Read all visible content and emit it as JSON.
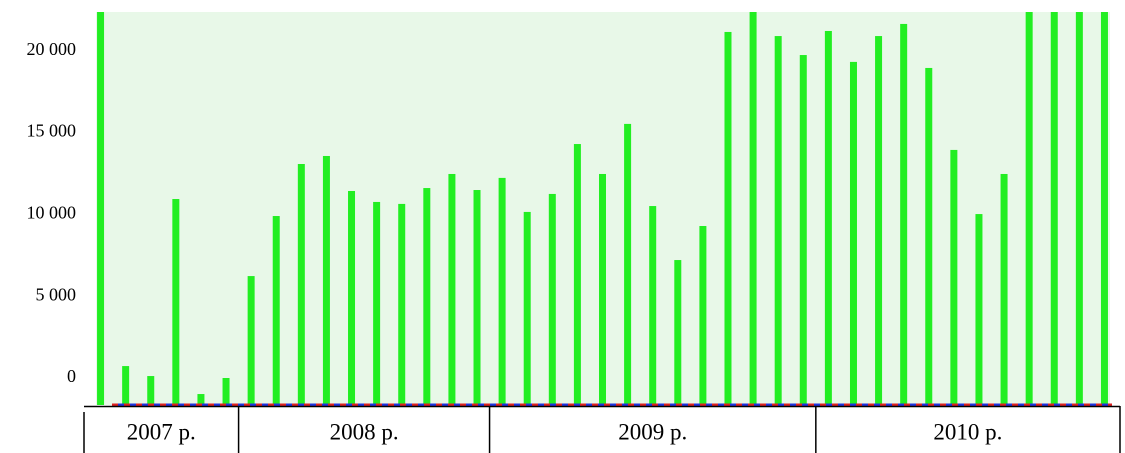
{
  "chart_data": {
    "type": "bar",
    "categories": [
      "2007 р.",
      "2007 р.",
      "2007 р.",
      "2007 р.",
      "2007 р.",
      "2007 р.",
      "2008 р.",
      "2008 р.",
      "2008 р.",
      "2008 р.",
      "2008 р.",
      "2008 р.",
      "2008 р.",
      "2008 р.",
      "2008 р.",
      "2008 р.",
      "2009 р.",
      "2009 р.",
      "2009 р.",
      "2009 р.",
      "2009 р.",
      "2009 р.",
      "2009 р.",
      "2009 р.",
      "2009 р.",
      "2009 р.",
      "2009 р.",
      "2009 р.",
      "2009 р.",
      "2010 р.",
      "2010 р.",
      "2010 р.",
      "2010 р.",
      "2010 р.",
      "2010 р.",
      "2010 р.",
      "2010 р.",
      "2010 р.",
      "2010 р.",
      "2010 р.",
      "2010 р."
    ],
    "values": [
      22500,
      730,
      120,
      10940,
      -980,
      0,
      6230,
      9900,
      13080,
      13570,
      11430,
      10760,
      10640,
      11610,
      12470,
      11490,
      12230,
      10150,
      11250,
      14300,
      12470,
      15530,
      10510,
      7210,
      9290,
      21150,
      22500,
      20900,
      19740,
      21210,
      19320,
      20900,
      21640,
      18950,
      13940,
      10020,
      12470,
      22500,
      22500,
      22500,
      22500
    ],
    "color": "#22ee22",
    "ylim": [
      -1650,
      22370
    ],
    "yticks": [
      0,
      {
        "value": 5000,
        "label": "5 000"
      },
      {
        "value": 10000,
        "label": "10 000"
      },
      {
        "value": 15000,
        "label": "15 000"
      },
      {
        "value": 20000,
        "label": "20 000"
      }
    ],
    "grid": false
  }
}
